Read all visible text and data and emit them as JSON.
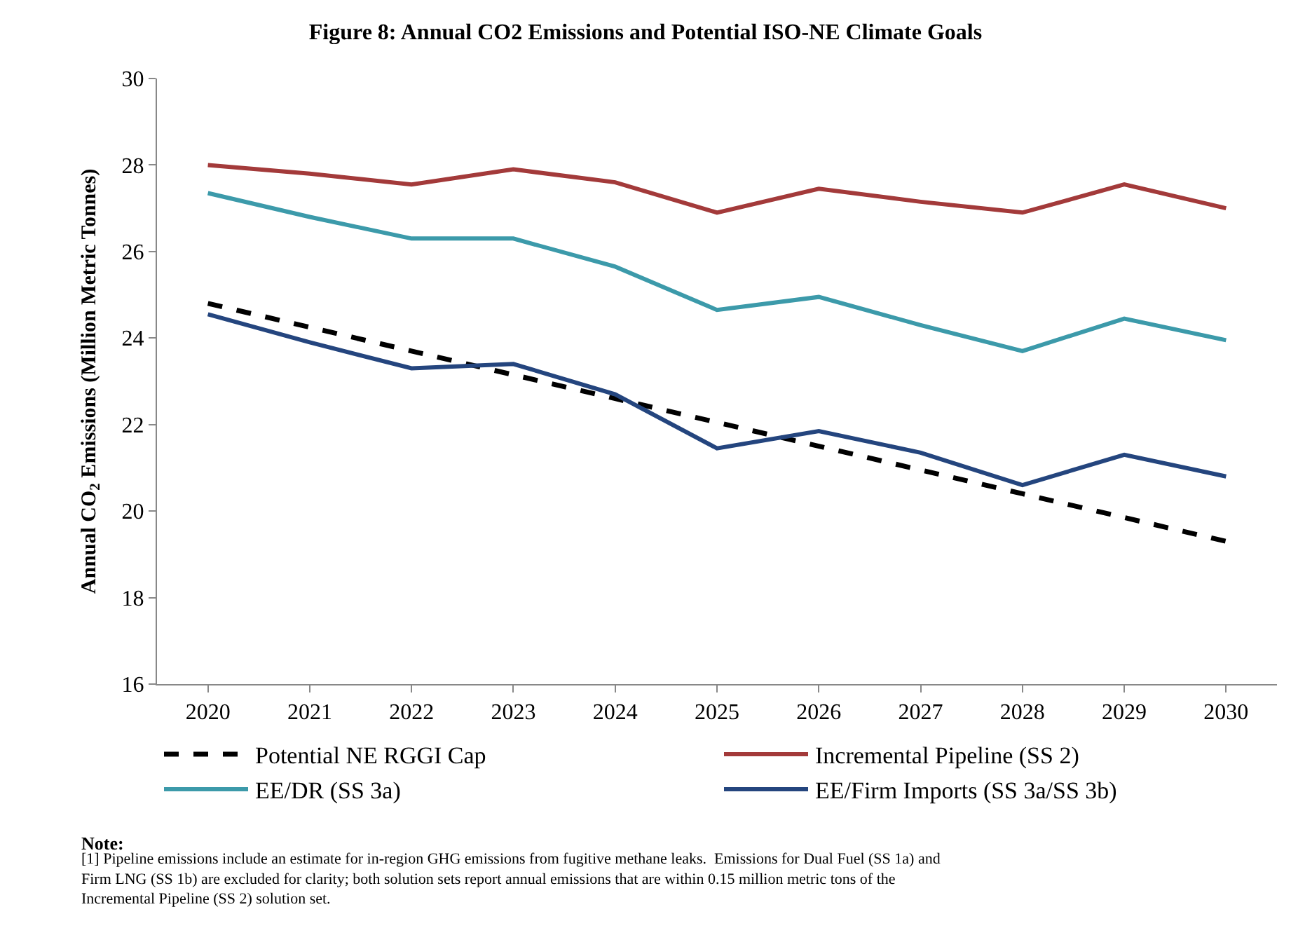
{
  "chart_data": {
    "type": "line",
    "title": "Figure 8: Annual CO2 Emissions and Potential ISO-NE Climate Goals",
    "ylabel": "Annual CO$_{2}$ Emissions (Million Metric Tonnes)",
    "categories": [
      "2020",
      "2021",
      "2022",
      "2023",
      "2024",
      "2025",
      "2026",
      "2027",
      "2028",
      "2029",
      "2030"
    ],
    "series": [
      {
        "name": "Potential NE RGGI Cap",
        "color": "#000000",
        "line_style": "dashed",
        "values": [
          24.8,
          24.25,
          23.7,
          23.15,
          22.6,
          22.05,
          21.5,
          20.95,
          20.4,
          19.85,
          19.3
        ]
      },
      {
        "name": "Incremental Pipeline (SS 2)",
        "color": "#a33a3a",
        "values": [
          28.0,
          27.8,
          27.55,
          27.9,
          27.6,
          26.9,
          27.45,
          27.15,
          26.9,
          27.55,
          27.0
        ]
      },
      {
        "name": "EE/DR (SS 3a)",
        "color": "#3c9aaa",
        "values": [
          27.35,
          26.8,
          26.3,
          26.3,
          25.65,
          24.65,
          24.95,
          24.3,
          23.7,
          24.45,
          23.95
        ]
      },
      {
        "name": "EE/Firm Imports (SS 3a/SS 3b)",
        "color": "#24457e",
        "values": [
          24.55,
          23.9,
          23.3,
          23.4,
          22.7,
          21.45,
          21.85,
          21.35,
          20.6,
          21.3,
          20.8
        ]
      }
    ],
    "ylim": [
      16,
      30
    ],
    "yticks": [
      16,
      18,
      20,
      22,
      24,
      26,
      28,
      30
    ],
    "legend": "bottom",
    "marker": "none",
    "line_style": "solid",
    "annotations": [
      "Note:",
      "[1] Pipeline emissions include an estimate for in-region GHG emissions from fugitive methane leaks.  Emissions for Dual Fuel (SS 1a) and Firm LNG (SS 1b) are excluded for clarity; both solution sets report annual emissions that are within 0.15 million metric tons of the Incremental Pipeline (SS 2) solution set."
    ]
  }
}
